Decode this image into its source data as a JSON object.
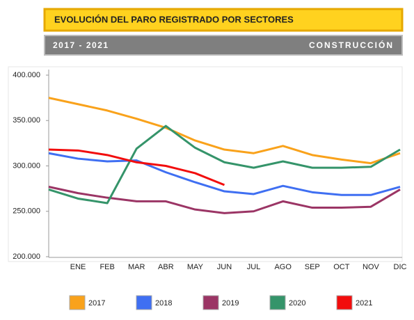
{
  "chart_data": {
    "type": "line",
    "title": "EVOLUCIÓN DEL PARO REGISTRADO POR SECTORES",
    "subtitle": "2017 - 2021",
    "sector": "CONSTRUCCIÓN",
    "categories": [
      null,
      "ENE",
      "FEB",
      "MAR",
      "ABR",
      "MAY",
      "JUN",
      "JUL",
      "AGO",
      "SEP",
      "OCT",
      "NOV",
      "DIC"
    ],
    "series": [
      {
        "name": "2017",
        "color": "#f9a21b",
        "values": [
          375000,
          368000,
          361000,
          352000,
          342000,
          328000,
          318000,
          314000,
          322000,
          312000,
          307000,
          303000,
          314000
        ]
      },
      {
        "name": "2018",
        "color": "#3f6ff2",
        "values": [
          314000,
          308000,
          305000,
          306000,
          293000,
          282000,
          272000,
          269000,
          278000,
          271000,
          268000,
          268000,
          277000
        ]
      },
      {
        "name": "2019",
        "color": "#9b3565",
        "values": [
          277000,
          270000,
          265000,
          261000,
          261000,
          252000,
          248000,
          250000,
          261000,
          254000,
          254000,
          255000,
          274000
        ]
      },
      {
        "name": "2020",
        "color": "#35946a",
        "values": [
          274000,
          264000,
          259000,
          319000,
          344000,
          320000,
          304000,
          298000,
          305000,
          298000,
          298000,
          299000,
          318000
        ]
      },
      {
        "name": "2021",
        "color": "#f20d0d",
        "values": [
          318000,
          317000,
          312000,
          304000,
          300000,
          292000,
          279000,
          null,
          null,
          null,
          null,
          null,
          null
        ]
      }
    ],
    "ylim": [
      200000,
      400000
    ],
    "yticks": [
      {
        "value": 200000,
        "label": "200.000"
      },
      {
        "value": 250000,
        "label": "250.000"
      },
      {
        "value": 300000,
        "label": "300.000"
      },
      {
        "value": 350000,
        "label": "350.000"
      },
      {
        "value": 400000,
        "label": "400.000"
      }
    ],
    "grid": false
  }
}
